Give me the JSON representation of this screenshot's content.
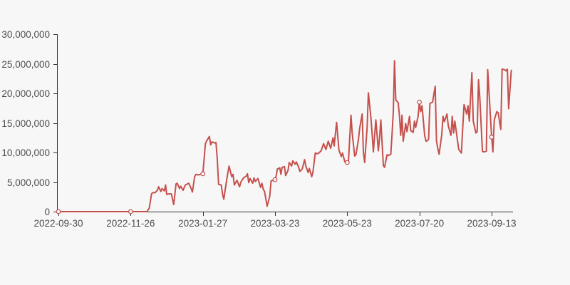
{
  "page": {
    "background_color": "#f7f7f7"
  },
  "chart_data": {
    "type": "line",
    "title": "",
    "legend": "none",
    "grid": false,
    "line_color": "#c5504c",
    "axis_color": "#333333",
    "label_color": "#4d4d4d",
    "marker_style": "open-circle",
    "ylim": [
      0,
      30000000
    ],
    "y_ticks": [
      0,
      5000000,
      10000000,
      15000000,
      20000000,
      25000000,
      30000000
    ],
    "y_tick_labels": [
      "0",
      "5,000,000",
      "10,000,000",
      "15,000,000",
      "20,000,000",
      "25,000,000",
      "30,000,000"
    ],
    "x_ticks": [
      "2022-09-30",
      "2022-11-26",
      "2023-01-27",
      "2023-03-23",
      "2023-05-23",
      "2023-07-20",
      "2023-09-13"
    ],
    "marked_points": [
      {
        "date": "2022-09-30",
        "value": 0
      },
      {
        "date": "2022-11-26",
        "value": 0
      },
      {
        "date": "2023-01-27",
        "value": 6400000
      },
      {
        "date": "2023-03-23",
        "value": 5400000
      },
      {
        "date": "2023-05-23",
        "value": 8300000
      },
      {
        "date": "2023-07-20",
        "value": 18500000
      },
      {
        "date": "2023-09-13",
        "value": 12600000
      }
    ],
    "points": {
      "dates": [
        "2022-09-30",
        "2022-10-14",
        "2022-10-31",
        "2022-11-15",
        "2022-11-26",
        "2022-12-10",
        "2022-12-12",
        "2022-12-14",
        "2022-12-15",
        "2022-12-17",
        "2022-12-19",
        "2022-12-20",
        "2022-12-22",
        "2022-12-23",
        "2022-12-25",
        "2022-12-26",
        "2022-12-27",
        "2022-12-29",
        "2022-12-31",
        "2023-01-02",
        "2023-01-03",
        "2023-01-04",
        "2023-01-05",
        "2023-01-07",
        "2023-01-08",
        "2023-01-10",
        "2023-01-12",
        "2023-01-14",
        "2023-01-15",
        "2023-01-17",
        "2023-01-18",
        "2023-01-20",
        "2023-01-21",
        "2023-01-23",
        "2023-01-25",
        "2023-01-27",
        "2023-01-29",
        "2023-01-30",
        "2023-02-01",
        "2023-02-02",
        "2023-02-03",
        "2023-02-05",
        "2023-02-06",
        "2023-02-07",
        "2023-02-08",
        "2023-02-10",
        "2023-02-11",
        "2023-02-12",
        "2023-02-14",
        "2023-02-15",
        "2023-02-16",
        "2023-02-18",
        "2023-02-19",
        "2023-02-20",
        "2023-02-22",
        "2023-02-24",
        "2023-02-25",
        "2023-02-27",
        "2023-03-01",
        "2023-03-02",
        "2023-03-03",
        "2023-03-04",
        "2023-03-06",
        "2023-03-07",
        "2023-03-08",
        "2023-03-10",
        "2023-03-12",
        "2023-03-13",
        "2023-03-14",
        "2023-03-15",
        "2023-03-17",
        "2023-03-19",
        "2023-03-20",
        "2023-03-23",
        "2023-03-24",
        "2023-03-25",
        "2023-03-27",
        "2023-03-28",
        "2023-03-29",
        "2023-03-31",
        "2023-04-01",
        "2023-04-03",
        "2023-04-04",
        "2023-04-06",
        "2023-04-07",
        "2023-04-09",
        "2023-04-10",
        "2023-04-12",
        "2023-04-13",
        "2023-04-15",
        "2023-04-16",
        "2023-04-17",
        "2023-04-18",
        "2023-04-20",
        "2023-04-21",
        "2023-04-23",
        "2023-04-24",
        "2023-04-26",
        "2023-04-28",
        "2023-04-29",
        "2023-05-01",
        "2023-05-03",
        "2023-05-05",
        "2023-05-07",
        "2023-05-09",
        "2023-05-11",
        "2023-05-12",
        "2023-05-14",
        "2023-05-16",
        "2023-05-18",
        "2023-05-19",
        "2023-05-21",
        "2023-05-23",
        "2023-05-24",
        "2023-05-26",
        "2023-05-27",
        "2023-05-29",
        "2023-05-30",
        "2023-06-01",
        "2023-06-02",
        "2023-06-04",
        "2023-06-05",
        "2023-06-06",
        "2023-06-08",
        "2023-06-09",
        "2023-06-11",
        "2023-06-12",
        "2023-06-13",
        "2023-06-15",
        "2023-06-17",
        "2023-06-18",
        "2023-06-19",
        "2023-06-21",
        "2023-06-22",
        "2023-06-24",
        "2023-06-25",
        "2023-06-27",
        "2023-06-28",
        "2023-06-29",
        "2023-06-30",
        "2023-07-01",
        "2023-07-03",
        "2023-07-04",
        "2023-07-05",
        "2023-07-06",
        "2023-07-07",
        "2023-07-09",
        "2023-07-10",
        "2023-07-12",
        "2023-07-13",
        "2023-07-15",
        "2023-07-16",
        "2023-07-17",
        "2023-07-19",
        "2023-07-20",
        "2023-07-21",
        "2023-07-22",
        "2023-07-24",
        "2023-07-25",
        "2023-07-26",
        "2023-07-27",
        "2023-07-28",
        "2023-07-30",
        "2023-08-01",
        "2023-08-02",
        "2023-08-03",
        "2023-08-04",
        "2023-08-06",
        "2023-08-07",
        "2023-08-08",
        "2023-08-10",
        "2023-08-11",
        "2023-08-13",
        "2023-08-14",
        "2023-08-15",
        "2023-08-16",
        "2023-08-18",
        "2023-08-19",
        "2023-08-21",
        "2023-08-22",
        "2023-08-23",
        "2023-08-25",
        "2023-08-26",
        "2023-08-27",
        "2023-08-29",
        "2023-08-30",
        "2023-09-01",
        "2023-09-02",
        "2023-09-03",
        "2023-09-04",
        "2023-09-06",
        "2023-09-07",
        "2023-09-09",
        "2023-09-10",
        "2023-09-13",
        "2023-09-14",
        "2023-09-15",
        "2023-09-17",
        "2023-09-18",
        "2023-09-20",
        "2023-09-21",
        "2023-09-23",
        "2023-09-24",
        "2023-09-25",
        "2023-09-26",
        "2023-09-28"
      ],
      "values": [
        0,
        0,
        0,
        0,
        0,
        0,
        600000,
        3000000,
        3200000,
        3200000,
        3600000,
        4200000,
        3400000,
        3900000,
        3500000,
        4500000,
        2900000,
        3000000,
        3000000,
        1200000,
        2900000,
        4700000,
        4800000,
        3900000,
        4300000,
        3600000,
        4500000,
        4700000,
        4800000,
        3900000,
        3300000,
        5900000,
        6300000,
        6200000,
        6300000,
        6400000,
        11500000,
        12000000,
        12700000,
        11300000,
        11800000,
        11600000,
        11700000,
        9000000,
        4600000,
        4500000,
        3000000,
        2100000,
        5100000,
        6500000,
        7700000,
        5900000,
        6300000,
        4500000,
        5300000,
        4200000,
        5000000,
        5700000,
        6000000,
        6400000,
        4900000,
        5600000,
        4800000,
        5700000,
        5100000,
        5600000,
        4100000,
        4800000,
        3800000,
        3400000,
        900000,
        2600000,
        5200000,
        5400000,
        6100000,
        7200000,
        7400000,
        6300000,
        7500000,
        7600000,
        6100000,
        7000000,
        8300000,
        7700000,
        8600000,
        8000000,
        8400000,
        7500000,
        6800000,
        7200000,
        8000000,
        8800000,
        7700000,
        6600000,
        7300000,
        5900000,
        6600000,
        9900000,
        9800000,
        9900000,
        10300000,
        11500000,
        10500000,
        11900000,
        10700000,
        12500000,
        11100000,
        15100000,
        10400000,
        9300000,
        9900000,
        8400000,
        8300000,
        8600000,
        16300000,
        13300000,
        9400000,
        9600000,
        12100000,
        14100000,
        16500000,
        10100000,
        8300000,
        14300000,
        20100000,
        16000000,
        13100000,
        10100000,
        15500000,
        10300000,
        12500000,
        15500000,
        7800000,
        7500000,
        9600000,
        9500000,
        9700000,
        13000000,
        16900000,
        25500000,
        18900000,
        18400000,
        16100000,
        12900000,
        16300000,
        11900000,
        14900000,
        13500000,
        16100000,
        13700000,
        13400000,
        15300000,
        14200000,
        16200000,
        18500000,
        16900000,
        17900000,
        12900000,
        11900000,
        12000000,
        12200000,
        18300000,
        18500000,
        21200000,
        12000000,
        10700000,
        9700000,
        13000000,
        16100000,
        15200000,
        16500000,
        14500000,
        12900000,
        16100000,
        13300000,
        15300000,
        12000000,
        10500000,
        9900000,
        14100000,
        18100000,
        16500000,
        17900000,
        15300000,
        23500000,
        15300000,
        13300000,
        13500000,
        22300000,
        19300000,
        10200000,
        10100000,
        10200000,
        24000000,
        12600000,
        10100000,
        15500000,
        16900000,
        16700000,
        13900000,
        24100000,
        24000000,
        23800000,
        24100000,
        17400000,
        23900000
      ]
    }
  }
}
